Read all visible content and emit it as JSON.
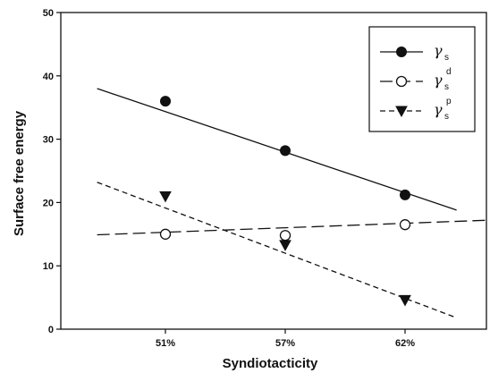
{
  "chart_data": {
    "type": "line",
    "title": "",
    "xlabel": "Syndiotacticity",
    "ylabel": "Surface free energy",
    "categories": [
      "51%",
      "57%",
      "62%"
    ],
    "ylim": [
      0,
      50
    ],
    "yticks": [
      0,
      10,
      20,
      30,
      40,
      50
    ],
    "grid": false,
    "legend_position": "top-right",
    "series": [
      {
        "name": "γs",
        "legend_symbol": "γ",
        "legend_sub": "s",
        "legend_sup": "",
        "marker": "filled-circle",
        "line": "solid",
        "values": [
          36.0,
          28.2,
          21.2
        ],
        "fit_line": {
          "x_start_category_offset": -0.57,
          "y_start": 38.0,
          "x_end_category_offset": 2.43,
          "y_end": 18.8
        }
      },
      {
        "name": "γs d",
        "legend_symbol": "γ",
        "legend_sub": "s",
        "legend_sup": "d",
        "marker": "open-circle",
        "line": "long-dash",
        "values": [
          15.0,
          14.8,
          16.5
        ],
        "fit_line": {
          "x_start_category_offset": -0.57,
          "y_start": 14.9,
          "x_end_category_offset": 2.68,
          "y_end": 17.2
        }
      },
      {
        "name": "γs p",
        "legend_symbol": "γ",
        "legend_sub": "s",
        "legend_sup": "p",
        "marker": "filled-triangle-down",
        "line": "short-dash",
        "values": [
          21.0,
          13.3,
          4.6
        ],
        "fit_line": {
          "x_start_category_offset": -0.57,
          "y_start": 23.2,
          "x_end_category_offset": 2.43,
          "y_end": 1.8
        }
      }
    ]
  }
}
